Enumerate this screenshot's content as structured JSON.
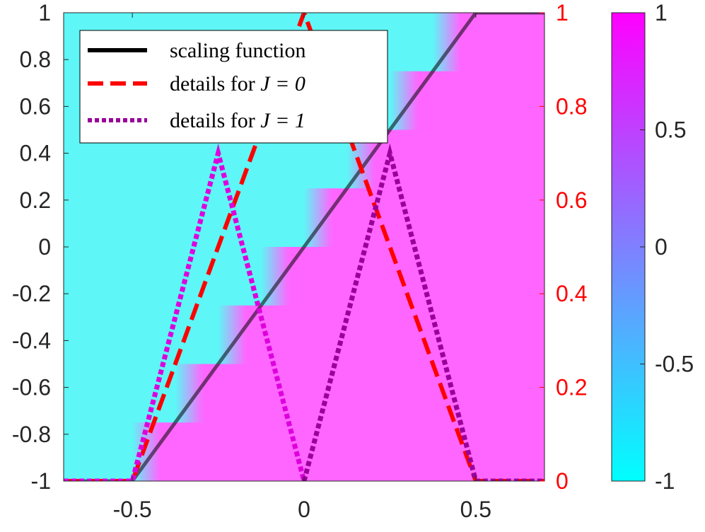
{
  "chart_data": {
    "type": "line",
    "title": "",
    "xlabel": "",
    "ylabel": "",
    "xlim": [
      -0.7,
      0.7
    ],
    "ylim_left": [
      -1,
      1
    ],
    "ylim_right": [
      0,
      1
    ],
    "x_ticks": [
      -0.5,
      0,
      0.5
    ],
    "x_tick_labels": [
      "-0.5",
      "0",
      "0.5"
    ],
    "y_left_ticks": [
      -1,
      -0.8,
      -0.6,
      -0.4,
      -0.2,
      0,
      0.2,
      0.4,
      0.6,
      0.8,
      1
    ],
    "y_left_tick_labels": [
      "-1",
      "-0.8",
      "-0.6",
      "-0.4",
      "-0.2",
      "0",
      "0.2",
      "0.4",
      "0.6",
      "0.8",
      "1"
    ],
    "y_right_ticks": [
      0,
      0.2,
      0.4,
      0.6,
      0.8,
      1
    ],
    "y_right_tick_labels": [
      "0",
      "0.2",
      "0.4",
      "0.6",
      "0.8",
      "1"
    ],
    "legend_position": "top-left",
    "grid": false,
    "background_field": {
      "description_value": "image colored by sign of (y - scaling function), steps at quarter-intervals",
      "steps": [
        {
          "x_start": -0.5,
          "y": -0.75
        },
        {
          "x_start": -0.375,
          "y": -0.5
        },
        {
          "x_start": -0.25,
          "y": -0.25
        },
        {
          "x_start": -0.125,
          "y": 0
        },
        {
          "x_start": 0,
          "y": 0.25
        },
        {
          "x_start": 0.125,
          "y": 0.5
        },
        {
          "x_start": 0.25,
          "y": 0.75
        },
        {
          "x_start": 0.375,
          "y": 1
        }
      ],
      "low_color": "#5ef6f6",
      "high_color": "#ff66ff"
    },
    "series": [
      {
        "name": "scaling function",
        "axis": "left",
        "style": "solid",
        "color": "#000000",
        "x": [
          -0.7,
          -0.5,
          0.5,
          0.7
        ],
        "y": [
          -1,
          -1,
          1,
          1
        ]
      },
      {
        "name": "details for J = 0",
        "axis": "right",
        "style": "dashed",
        "color": "#ff0000",
        "x": [
          -0.7,
          -0.5,
          0,
          0.5,
          0.7
        ],
        "y": [
          0,
          0,
          1,
          0,
          0
        ]
      },
      {
        "name": "details for J = 1",
        "axis": "right",
        "style": "dotted",
        "color_segments": [
          "#dd00dd",
          "#990099"
        ],
        "x": [
          -0.7,
          -0.5,
          -0.25,
          0,
          0.25,
          0.5,
          0.7
        ],
        "y": [
          0,
          0,
          0.7,
          0,
          0.7,
          0,
          0
        ]
      }
    ],
    "colorbar": {
      "range": [
        -1,
        1
      ],
      "ticks": [
        -1,
        -0.5,
        0,
        0.5,
        1
      ],
      "tick_labels": [
        "-1",
        "-0.5",
        "0",
        "0.5",
        "1"
      ],
      "colors": [
        "#00ffff",
        "#ff00ff"
      ]
    }
  },
  "legend": {
    "items": [
      {
        "label": "scaling function",
        "j": ""
      },
      {
        "label": "details for ",
        "j": "J = 0"
      },
      {
        "label": "details for ",
        "j": "J = 1"
      }
    ]
  }
}
